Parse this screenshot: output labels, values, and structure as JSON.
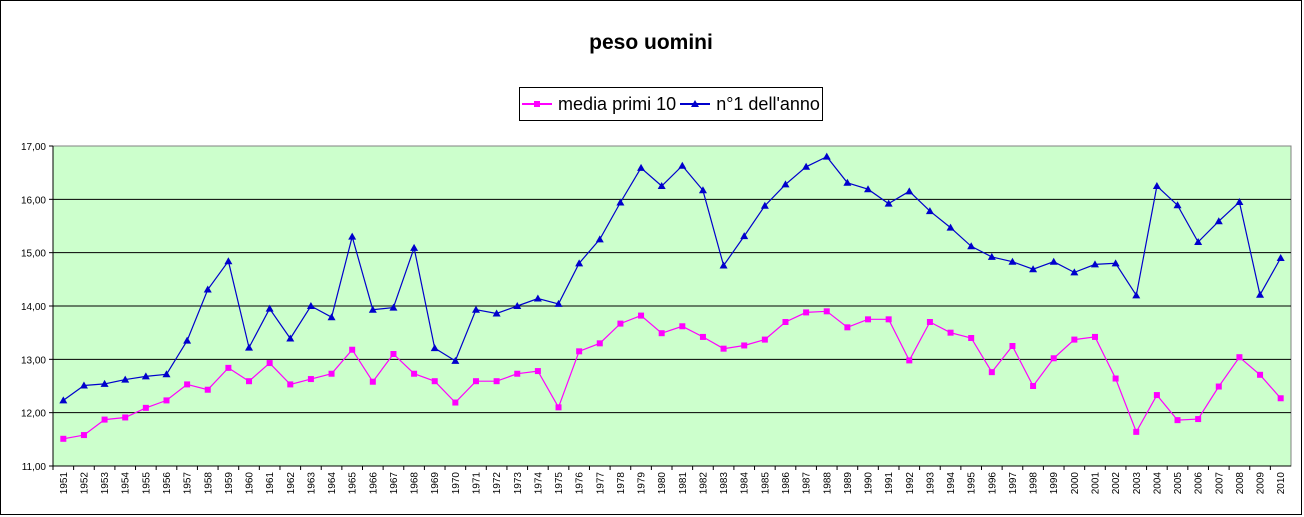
{
  "chart_data": {
    "type": "line",
    "title": "peso uomini",
    "xlabel": "",
    "ylabel": "",
    "ylim": [
      11,
      17
    ],
    "yticks": [
      "11,00",
      "12,00",
      "13,00",
      "14,00",
      "15,00",
      "16,00",
      "17,00"
    ],
    "legend_position": "top-center",
    "plot_background": "#ccffcc",
    "gridlines": "horizontal",
    "x": [
      "1951",
      "1952",
      "1953",
      "1954",
      "1955",
      "1956",
      "1957",
      "1958",
      "1959",
      "1960",
      "1961",
      "1962",
      "1963",
      "1964",
      "1965",
      "1966",
      "1967",
      "1968",
      "1969",
      "1970",
      "1971",
      "1972",
      "1973",
      "1974",
      "1975",
      "1976",
      "1977",
      "1978",
      "1979",
      "1980",
      "1981",
      "1982",
      "1983",
      "1984",
      "1985",
      "1986",
      "1987",
      "1988",
      "1989",
      "1990",
      "1991",
      "1992",
      "1993",
      "1994",
      "1995",
      "1996",
      "1997",
      "1998",
      "1999",
      "2000",
      "2001",
      "2002",
      "2003",
      "2004",
      "2005",
      "2006",
      "2007",
      "2008",
      "2009",
      "2010"
    ],
    "series": [
      {
        "name": "media primi 10",
        "color": "#ff00ff",
        "marker": "square",
        "values": [
          11.51,
          11.58,
          11.87,
          11.91,
          12.09,
          12.23,
          12.53,
          12.43,
          12.84,
          12.59,
          12.93,
          12.53,
          12.63,
          12.73,
          13.18,
          12.58,
          13.1,
          12.73,
          12.59,
          12.19,
          12.59,
          12.59,
          12.73,
          12.78,
          12.1,
          13.15,
          13.3,
          13.67,
          13.82,
          13.49,
          13.62,
          13.42,
          13.2,
          13.26,
          13.37,
          13.7,
          13.88,
          13.9,
          13.6,
          13.75,
          13.75,
          12.98,
          13.7,
          13.5,
          13.4,
          12.76,
          13.25,
          12.5,
          13.02,
          13.37,
          13.42,
          12.64,
          11.64,
          12.33,
          11.86,
          11.88,
          12.49,
          13.04,
          12.71,
          12.27
        ]
      },
      {
        "name": "n°1 dell'anno",
        "color": "#0000cc",
        "marker": "triangle",
        "values": [
          12.23,
          12.51,
          12.54,
          12.62,
          12.68,
          12.72,
          13.35,
          14.31,
          14.84,
          13.22,
          13.95,
          13.39,
          14.0,
          13.79,
          15.3,
          13.93,
          13.97,
          15.09,
          13.21,
          12.97,
          13.93,
          13.86,
          14.0,
          14.14,
          14.04,
          14.8,
          15.25,
          15.94,
          16.59,
          16.25,
          16.63,
          16.17,
          14.76,
          15.31,
          15.88,
          16.28,
          16.61,
          16.8,
          16.31,
          16.19,
          15.92,
          16.15,
          15.78,
          15.47,
          15.12,
          14.92,
          14.83,
          14.69,
          14.83,
          14.63,
          14.78,
          14.8,
          14.2,
          16.25,
          15.89,
          15.2,
          15.59,
          15.95,
          14.21,
          14.9
        ]
      }
    ]
  }
}
